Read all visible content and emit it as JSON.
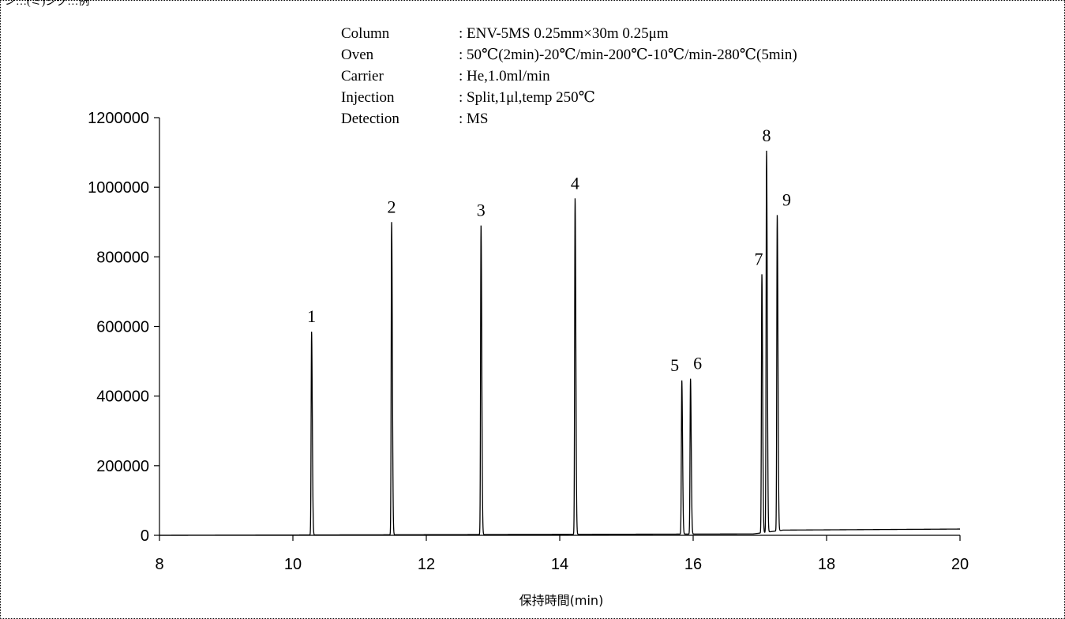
{
  "header": {
    "caption": "ン…(ミ)ジグ…例"
  },
  "conditions": [
    {
      "name": "Column",
      "value": ": ENV-5MS 0.25mm×30m 0.25μm"
    },
    {
      "name": "Oven",
      "value": ": 50℃(2min)-20℃/min-200℃-10℃/min-280℃(5min)"
    },
    {
      "name": "Carrier",
      "value": ": He,1.0ml/min"
    },
    {
      "name": "Injection",
      "value": ": Split,1μl,temp 250℃"
    },
    {
      "name": "Detection",
      "value": ": MS"
    }
  ],
  "chart_data": {
    "type": "line",
    "title": "",
    "xlabel": "保持時間(min)",
    "ylabel": "",
    "xlim": [
      8,
      20
    ],
    "ylim": [
      0,
      1200000
    ],
    "x_ticks": [
      8,
      10,
      12,
      14,
      16,
      18,
      20
    ],
    "y_ticks": [
      0,
      200000,
      400000,
      600000,
      800000,
      1000000,
      1200000
    ],
    "grid": false,
    "legend": "none",
    "line_color": "#000000",
    "peaks": [
      {
        "label": "1",
        "x": 10.28,
        "y": 585000
      },
      {
        "label": "2",
        "x": 11.48,
        "y": 900000
      },
      {
        "label": "3",
        "x": 12.82,
        "y": 890000
      },
      {
        "label": "4",
        "x": 14.23,
        "y": 968000
      },
      {
        "label": "5",
        "x": 15.83,
        "y": 445000
      },
      {
        "label": "6",
        "x": 15.96,
        "y": 450000
      },
      {
        "label": "7",
        "x": 17.03,
        "y": 750000
      },
      {
        "label": "8",
        "x": 17.1,
        "y": 1105000
      },
      {
        "label": "9",
        "x": 17.26,
        "y": 920000
      }
    ],
    "baseline": [
      {
        "x": 8,
        "y": 0
      },
      {
        "x": 16.9,
        "y": 4000
      },
      {
        "x": 17.35,
        "y": 15000
      },
      {
        "x": 20,
        "y": 18000
      }
    ]
  }
}
